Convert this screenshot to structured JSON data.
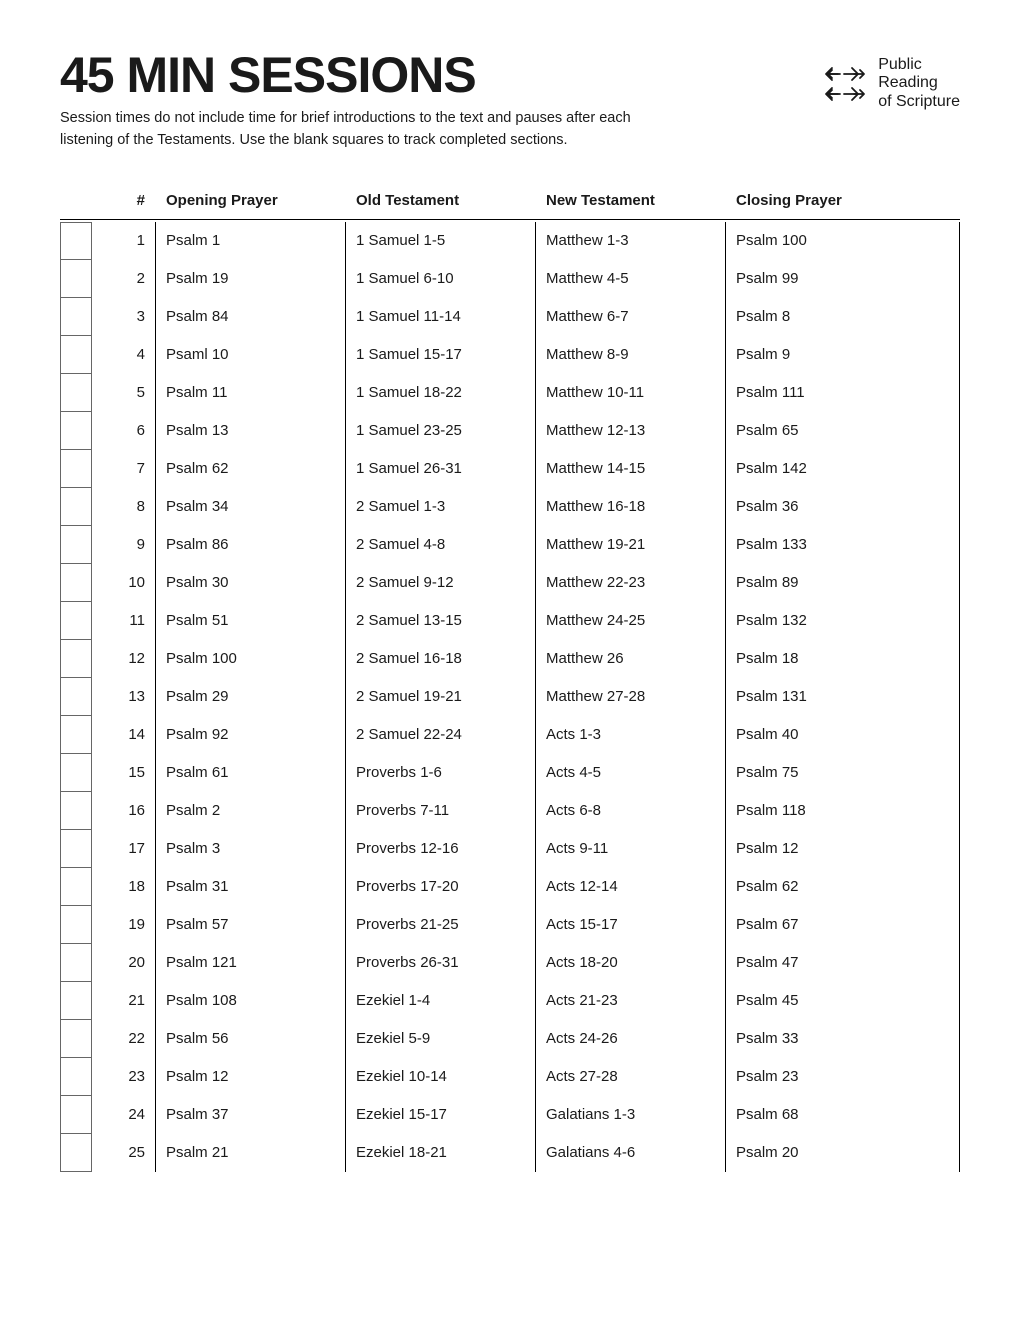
{
  "title": "45 MIN SESSIONS",
  "subtitle": "Session times do not include time for brief introductions to the text and pauses after each listening of the Testaments. Use the blank squares to track completed sections.",
  "logo": {
    "line1": "Public",
    "line2": "Reading",
    "line3": "of Scripture"
  },
  "columns": {
    "num": "#",
    "opening": "Opening Prayer",
    "ot": "Old Testament",
    "nt": "New Testament",
    "closing": "Closing Prayer"
  },
  "rows": [
    {
      "num": "1",
      "opening": "Psalm 1",
      "ot": "1 Samuel 1-5",
      "nt": "Matthew 1-3",
      "closing": "Psalm 100"
    },
    {
      "num": "2",
      "opening": "Psalm 19",
      "ot": "1 Samuel 6-10",
      "nt": "Matthew 4-5",
      "closing": "Psalm 99"
    },
    {
      "num": "3",
      "opening": "Psalm 84",
      "ot": "1 Samuel 11-14",
      "nt": "Matthew 6-7",
      "closing": "Psalm 8"
    },
    {
      "num": "4",
      "opening": "Psaml 10",
      "ot": "1 Samuel 15-17",
      "nt": "Matthew 8-9",
      "closing": "Psalm 9"
    },
    {
      "num": "5",
      "opening": "Psalm 11",
      "ot": "1 Samuel 18-22",
      "nt": "Matthew 10-11",
      "closing": "Psalm 111"
    },
    {
      "num": "6",
      "opening": "Psalm 13",
      "ot": "1 Samuel 23-25",
      "nt": "Matthew 12-13",
      "closing": "Psalm 65"
    },
    {
      "num": "7",
      "opening": "Psalm 62",
      "ot": "1 Samuel 26-31",
      "nt": "Matthew 14-15",
      "closing": "Psalm 142"
    },
    {
      "num": "8",
      "opening": "Psalm 34",
      "ot": "2 Samuel 1-3",
      "nt": "Matthew 16-18",
      "closing": "Psalm 36"
    },
    {
      "num": "9",
      "opening": "Psalm 86",
      "ot": "2 Samuel 4-8",
      "nt": "Matthew 19-21",
      "closing": "Psalm 133"
    },
    {
      "num": "10",
      "opening": "Psalm 30",
      "ot": "2 Samuel 9-12",
      "nt": "Matthew 22-23",
      "closing": "Psalm 89"
    },
    {
      "num": "11",
      "opening": "Psalm 51",
      "ot": "2 Samuel 13-15",
      "nt": "Matthew 24-25",
      "closing": "Psalm 132"
    },
    {
      "num": "12",
      "opening": "Psalm 100",
      "ot": "2 Samuel 16-18",
      "nt": "Matthew 26",
      "closing": "Psalm 18"
    },
    {
      "num": "13",
      "opening": "Psalm 29",
      "ot": "2 Samuel 19-21",
      "nt": "Matthew 27-28",
      "closing": "Psalm 131"
    },
    {
      "num": "14",
      "opening": "Psalm 92",
      "ot": "2 Samuel 22-24",
      "nt": "Acts 1-3",
      "closing": "Psalm 40"
    },
    {
      "num": "15",
      "opening": "Psalm 61",
      "ot": "Proverbs 1-6",
      "nt": "Acts 4-5",
      "closing": "Psalm 75"
    },
    {
      "num": "16",
      "opening": "Psalm 2",
      "ot": "Proverbs 7-11",
      "nt": "Acts 6-8",
      "closing": "Psalm 118"
    },
    {
      "num": "17",
      "opening": "Psalm 3",
      "ot": "Proverbs 12-16",
      "nt": "Acts 9-11",
      "closing": "Psalm 12"
    },
    {
      "num": "18",
      "opening": "Psalm 31",
      "ot": "Proverbs 17-20",
      "nt": "Acts 12-14",
      "closing": "Psalm 62"
    },
    {
      "num": "19",
      "opening": "Psalm 57",
      "ot": "Proverbs 21-25",
      "nt": "Acts 15-17",
      "closing": "Psalm 67"
    },
    {
      "num": "20",
      "opening": "Psalm 121",
      "ot": "Proverbs 26-31",
      "nt": "Acts 18-20",
      "closing": "Psalm 47"
    },
    {
      "num": "21",
      "opening": "Psalm 108",
      "ot": "Ezekiel 1-4",
      "nt": "Acts 21-23",
      "closing": "Psalm 45"
    },
    {
      "num": "22",
      "opening": "Psalm 56",
      "ot": "Ezekiel 5-9",
      "nt": "Acts 24-26",
      "closing": "Psalm 33"
    },
    {
      "num": "23",
      "opening": "Psalm 12",
      "ot": "Ezekiel 10-14",
      "nt": "Acts 27-28",
      "closing": "Psalm 23"
    },
    {
      "num": "24",
      "opening": "Psalm 37",
      "ot": "Ezekiel 15-17",
      "nt": "Galatians 1-3",
      "closing": "Psalm 68"
    },
    {
      "num": "25",
      "opening": "Psalm 21",
      "ot": "Ezekiel 18-21",
      "nt": "Galatians 4-6",
      "closing": "Psalm 20"
    }
  ]
}
